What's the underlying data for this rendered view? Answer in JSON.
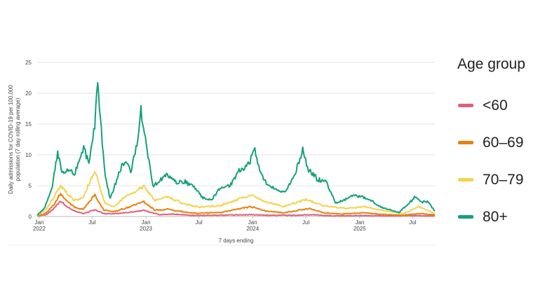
{
  "chart_data": {
    "type": "line",
    "title": "",
    "ylabel": "Daily admissions for COVID-19 per 100,000 population (7 day rolling average)",
    "ylabel_lines": [
      "Daily admissions for COVID-19 per 100,000",
      "population (7 day rolling average)"
    ],
    "xlabel": "7 days ending",
    "ylim": [
      0,
      25
    ],
    "yticks": [
      0,
      5,
      10,
      15,
      20,
      25
    ],
    "x_range": [
      "2021-12-25",
      "2025-09-15"
    ],
    "xticks": [
      {
        "date": "2022-01-01",
        "label": "Jan",
        "sub": "2022"
      },
      {
        "date": "2022-07-01",
        "label": "Jul",
        "sub": ""
      },
      {
        "date": "2023-01-01",
        "label": "Jan",
        "sub": "2023"
      },
      {
        "date": "2023-07-01",
        "label": "Jul",
        "sub": ""
      },
      {
        "date": "2024-01-01",
        "label": "Jan",
        "sub": "2024"
      },
      {
        "date": "2024-07-01",
        "label": "Jul",
        "sub": ""
      },
      {
        "date": "2025-01-01",
        "label": "Jan",
        "sub": "2025"
      },
      {
        "date": "2025-07-01",
        "label": "Jul",
        "sub": ""
      }
    ],
    "grid": true,
    "legend_position": "right",
    "legend_title": "Age group",
    "series": [
      {
        "name": "<60",
        "color": "#e0607e",
        "points": [
          [
            "2021-12-25",
            0.1
          ],
          [
            "2022-01-25",
            0.3
          ],
          [
            "2022-02-25",
            1.5
          ],
          [
            "2022-03-15",
            2.5
          ],
          [
            "2022-04-05",
            1.6
          ],
          [
            "2022-05-01",
            0.9
          ],
          [
            "2022-06-01",
            0.5
          ],
          [
            "2022-07-10",
            1.1
          ],
          [
            "2022-08-15",
            0.4
          ],
          [
            "2022-10-01",
            0.5
          ],
          [
            "2022-11-10",
            0.7
          ],
          [
            "2022-12-25",
            1.0
          ],
          [
            "2023-02-15",
            0.3
          ],
          [
            "2023-04-01",
            0.4
          ],
          [
            "2023-06-01",
            0.2
          ],
          [
            "2023-09-01",
            0.2
          ],
          [
            "2023-12-25",
            0.3
          ],
          [
            "2024-03-01",
            0.2
          ],
          [
            "2024-06-01",
            0.2
          ],
          [
            "2024-08-01",
            0.3
          ],
          [
            "2024-10-01",
            0.1
          ],
          [
            "2025-01-01",
            0.15
          ],
          [
            "2025-04-01",
            0.1
          ],
          [
            "2025-07-01",
            0.15
          ],
          [
            "2025-09-15",
            0.1
          ]
        ]
      },
      {
        "name": "60–69",
        "color": "#e5830f",
        "points": [
          [
            "2021-12-25",
            0.1
          ],
          [
            "2022-01-25",
            0.6
          ],
          [
            "2022-02-25",
            2.2
          ],
          [
            "2022-03-15",
            3.7
          ],
          [
            "2022-04-10",
            2.4
          ],
          [
            "2022-05-05",
            1.4
          ],
          [
            "2022-06-01",
            1.2
          ],
          [
            "2022-07-10",
            3.5
          ],
          [
            "2022-08-10",
            1.0
          ],
          [
            "2022-09-15",
            0.8
          ],
          [
            "2022-11-01",
            1.5
          ],
          [
            "2022-12-25",
            2.4
          ],
          [
            "2023-02-01",
            1.0
          ],
          [
            "2023-03-15",
            1.2
          ],
          [
            "2023-05-15",
            0.7
          ],
          [
            "2023-07-01",
            0.5
          ],
          [
            "2023-09-15",
            0.7
          ],
          [
            "2023-12-25",
            1.6
          ],
          [
            "2024-02-15",
            0.9
          ],
          [
            "2024-04-15",
            0.6
          ],
          [
            "2024-07-15",
            1.3
          ],
          [
            "2024-09-01",
            0.6
          ],
          [
            "2024-11-01",
            0.4
          ],
          [
            "2025-01-15",
            0.6
          ],
          [
            "2025-04-01",
            0.3
          ],
          [
            "2025-06-01",
            0.2
          ],
          [
            "2025-07-20",
            0.5
          ],
          [
            "2025-09-15",
            0.25
          ]
        ]
      },
      {
        "name": "70–79",
        "color": "#f2d450",
        "points": [
          [
            "2021-12-25",
            0.1
          ],
          [
            "2022-01-25",
            1.2
          ],
          [
            "2022-02-25",
            3.5
          ],
          [
            "2022-03-15",
            5.0
          ],
          [
            "2022-04-10",
            3.6
          ],
          [
            "2022-05-01",
            2.6
          ],
          [
            "2022-06-01",
            3.2
          ],
          [
            "2022-07-10",
            7.4
          ],
          [
            "2022-08-15",
            2.0
          ],
          [
            "2022-09-15",
            1.6
          ],
          [
            "2022-10-15",
            3.0
          ],
          [
            "2022-12-25",
            4.8
          ],
          [
            "2023-02-01",
            2.6
          ],
          [
            "2023-03-15",
            3.2
          ],
          [
            "2023-05-15",
            2.0
          ],
          [
            "2023-07-01",
            1.5
          ],
          [
            "2023-09-15",
            1.8
          ],
          [
            "2023-12-25",
            3.5
          ],
          [
            "2024-02-01",
            2.6
          ],
          [
            "2024-04-15",
            1.6
          ],
          [
            "2024-07-01",
            2.8
          ],
          [
            "2024-09-01",
            1.7
          ],
          [
            "2024-11-15",
            1.3
          ],
          [
            "2025-01-15",
            1.6
          ],
          [
            "2025-04-01",
            0.9
          ],
          [
            "2025-06-01",
            0.5
          ],
          [
            "2025-07-20",
            1.6
          ],
          [
            "2025-09-15",
            0.5
          ]
        ]
      },
      {
        "name": "80+",
        "color": "#16a07c",
        "points": [
          [
            "2021-12-25",
            0.2
          ],
          [
            "2022-01-20",
            1.4
          ],
          [
            "2022-02-15",
            5.0
          ],
          [
            "2022-03-05",
            10.5
          ],
          [
            "2022-03-20",
            6.8
          ],
          [
            "2022-04-10",
            7.5
          ],
          [
            "2022-05-01",
            6.9
          ],
          [
            "2022-05-20",
            9.5
          ],
          [
            "2022-06-05",
            11.1
          ],
          [
            "2022-06-20",
            8.3
          ],
          [
            "2022-07-10",
            14.5
          ],
          [
            "2022-07-20",
            22.4
          ],
          [
            "2022-08-01",
            14.0
          ],
          [
            "2022-08-15",
            6.5
          ],
          [
            "2022-09-01",
            2.8
          ],
          [
            "2022-09-20",
            5.5
          ],
          [
            "2022-10-10",
            8.3
          ],
          [
            "2022-10-25",
            8.7
          ],
          [
            "2022-11-10",
            7.2
          ],
          [
            "2022-12-01",
            12.0
          ],
          [
            "2022-12-15",
            17.0
          ],
          [
            "2023-01-05",
            10.7
          ],
          [
            "2023-01-25",
            4.8
          ],
          [
            "2023-02-15",
            5.9
          ],
          [
            "2023-03-15",
            6.9
          ],
          [
            "2023-04-15",
            5.6
          ],
          [
            "2023-05-15",
            5.6
          ],
          [
            "2023-06-15",
            4.8
          ],
          [
            "2023-07-15",
            3.0
          ],
          [
            "2023-08-15",
            2.8
          ],
          [
            "2023-09-15",
            4.8
          ],
          [
            "2023-10-15",
            5.0
          ],
          [
            "2023-11-15",
            7.3
          ],
          [
            "2023-12-20",
            8.4
          ],
          [
            "2024-01-05",
            11.4
          ],
          [
            "2024-01-25",
            7.5
          ],
          [
            "2024-02-20",
            5.0
          ],
          [
            "2024-03-20",
            4.5
          ],
          [
            "2024-04-20",
            4.0
          ],
          [
            "2024-05-20",
            6.3
          ],
          [
            "2024-06-20",
            10.8
          ],
          [
            "2024-07-10",
            7.7
          ],
          [
            "2024-08-10",
            6.0
          ],
          [
            "2024-09-10",
            5.5
          ],
          [
            "2024-10-10",
            2.2
          ],
          [
            "2024-11-15",
            2.8
          ],
          [
            "2024-12-15",
            3.5
          ],
          [
            "2025-01-15",
            3.1
          ],
          [
            "2025-02-15",
            2.4
          ],
          [
            "2025-03-15",
            1.5
          ],
          [
            "2025-04-15",
            1.1
          ],
          [
            "2025-05-15",
            0.6
          ],
          [
            "2025-06-15",
            2.0
          ],
          [
            "2025-07-10",
            3.2
          ],
          [
            "2025-08-01",
            2.3
          ],
          [
            "2025-08-20",
            2.5
          ],
          [
            "2025-09-15",
            0.9
          ]
        ]
      }
    ]
  }
}
